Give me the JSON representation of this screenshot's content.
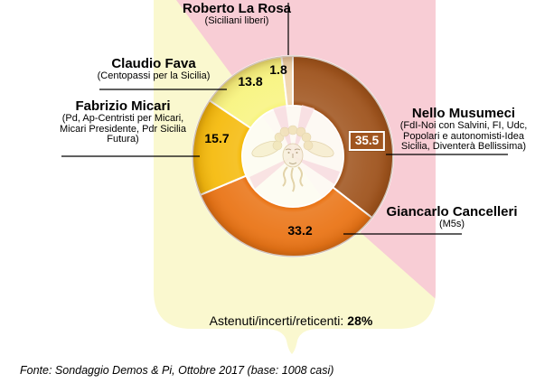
{
  "chart_data": {
    "type": "pie",
    "variant": "donut",
    "title": "",
    "unit": "%",
    "direction": "clockwise",
    "start_angle": "12 o'clock",
    "slices": [
      {
        "candidate": "Nello Musumeci",
        "party_lines": [
          "(FdI-Noi con Salvini, FI, Udc,",
          "Popolari e autonomisti-Idea",
          "Sicilia, Diventerà Bellissima)"
        ],
        "value": 35.5,
        "color": "#A0551F",
        "value_label_style": "boxed-white-on-slice"
      },
      {
        "candidate": "Giancarlo Cancelleri",
        "party_lines": [
          "(M5s)"
        ],
        "value": 33.2,
        "color": "#EA7517"
      },
      {
        "candidate": "Fabrizio Micari",
        "party_lines": [
          "(Pd, Ap-Centristi per Micari,",
          "Micari Presidente, Pdr Sicilia",
          "Futura)"
        ],
        "value": 15.7,
        "color": "#F5BB0E"
      },
      {
        "candidate": "Claudio Fava",
        "party_lines": [
          "(Centopassi per la Sicilia)"
        ],
        "value": 13.8,
        "color": "#F8F480"
      },
      {
        "candidate": "Roberto La Rosa",
        "party_lines": [
          "(Siciliani liberi)"
        ],
        "value": 1.8,
        "color": "#F0D3AB"
      }
    ],
    "abstention": {
      "label": "Astenuti/incerti/reticenti:",
      "value": "28%"
    },
    "source": "Fonte: Sondaggio Demos & Pi, Ottobre 2017 (base: 1008 casi)",
    "background": {
      "flag": "Sicilian flag",
      "red": "#F8CDD5",
      "yellow": "#FAF8CF",
      "emblem": "Trinacria"
    }
  }
}
